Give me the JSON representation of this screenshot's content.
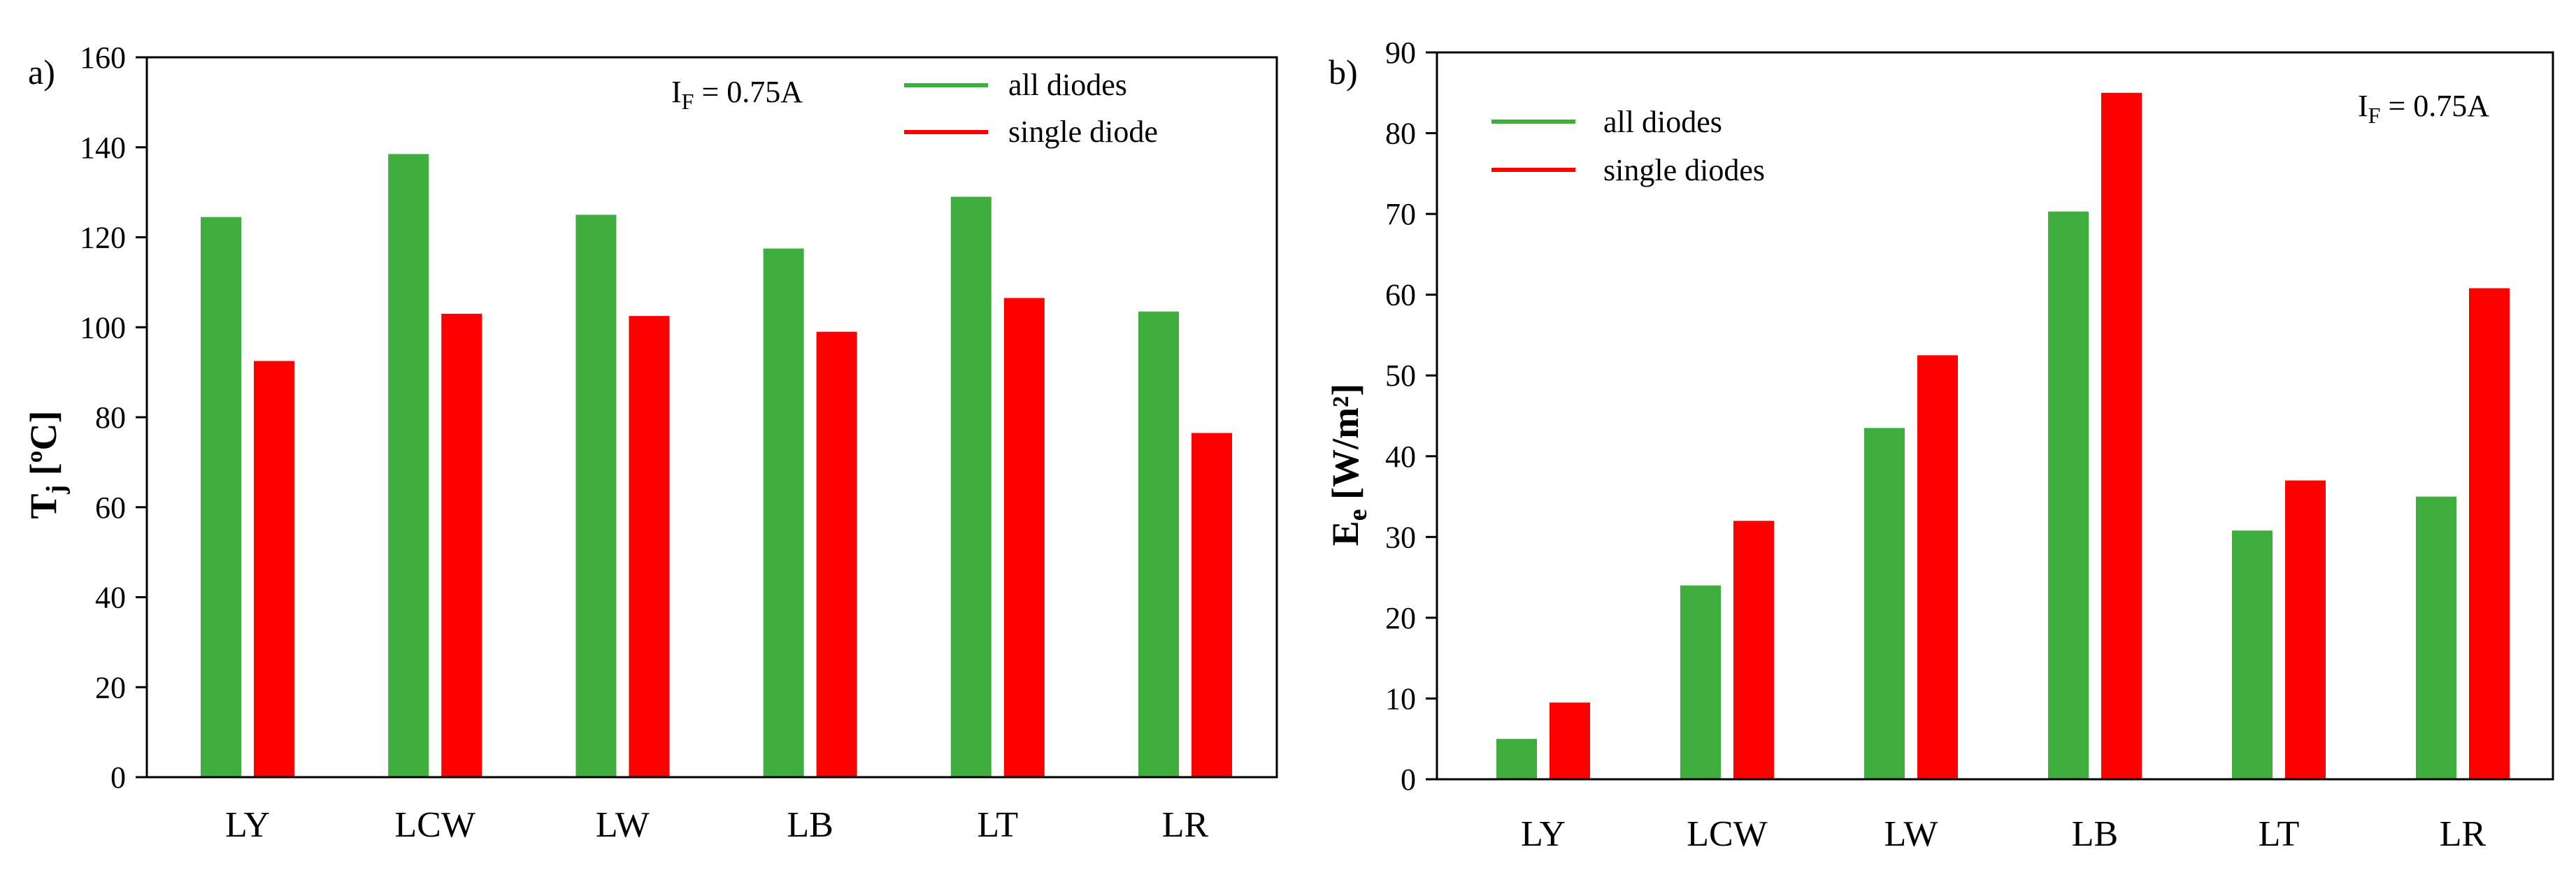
{
  "chart_data": [
    {
      "type": "bar",
      "panel_label": "a)",
      "ylabel": {
        "main": "T",
        "sub": "j",
        "unit": " [ºC]"
      },
      "annotation": {
        "main": "I",
        "sub": "F",
        "rest": " = 0.75A"
      },
      "categories": [
        "LY",
        "LCW",
        "LW",
        "LB",
        "LT",
        "LR"
      ],
      "ylim": [
        0,
        160
      ],
      "yticks": [
        0,
        20,
        40,
        60,
        80,
        100,
        120,
        140,
        160
      ],
      "series": [
        {
          "name": "all diodes",
          "color": "#3fae3f",
          "values": [
            124.5,
            138.5,
            125,
            117.5,
            129,
            103.5
          ]
        },
        {
          "name": "single diode",
          "color": "#ff0000",
          "values": [
            92.5,
            103,
            102.5,
            99,
            106.5,
            76.5
          ]
        }
      ],
      "legend_position": "top-right"
    },
    {
      "type": "bar",
      "panel_label": "b)",
      "ylabel": {
        "main": "E",
        "sub": "e",
        "unit": " [W/m²]"
      },
      "annotation": {
        "main": "I",
        "sub": "F",
        "rest": " = 0.75A"
      },
      "categories": [
        "LY",
        "LCW",
        "LW",
        "LB",
        "LT",
        "LR"
      ],
      "ylim": [
        0,
        90
      ],
      "yticks": [
        0,
        10,
        20,
        30,
        40,
        50,
        60,
        70,
        80,
        90
      ],
      "series": [
        {
          "name": "all diodes",
          "color": "#3fae3f",
          "values": [
            5,
            24,
            43.5,
            70.3,
            30.8,
            35
          ]
        },
        {
          "name": "single diodes",
          "color": "#ff0000",
          "values": [
            9.5,
            32,
            52.5,
            85,
            37,
            60.8
          ]
        }
      ],
      "legend_position": "top-left"
    }
  ]
}
